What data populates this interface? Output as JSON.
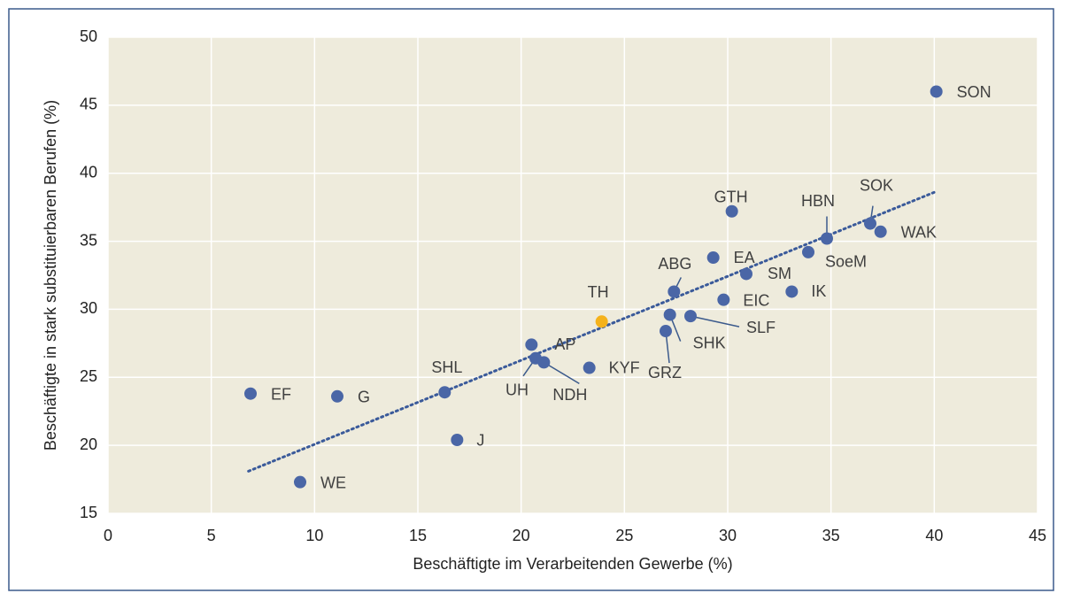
{
  "chart_data": {
    "type": "scatter",
    "x_label": "Beschäftigte im Verarbeitenden Gewerbe (%)",
    "y_label": "Beschäftigte in stark substituierbaren Berufen (%)",
    "xlim": [
      0,
      45
    ],
    "xticks": [
      0,
      5,
      10,
      15,
      20,
      25,
      30,
      35,
      40,
      45
    ],
    "ylim": [
      15,
      50
    ],
    "yticks": [
      15,
      20,
      25,
      30,
      35,
      40,
      45,
      50
    ],
    "grid": true,
    "color": "#4a66a6",
    "highlight_color": "#f5b21b",
    "labels": [
      "SON",
      "EF",
      "G",
      "WE",
      "J",
      "SHL",
      "UH",
      "AP",
      "NDH",
      "KYF",
      "TH",
      "GRZ",
      "SHK",
      "SLF",
      "ABG",
      "EIC",
      "EA",
      "SM",
      "GTH",
      "IK",
      "SoeM",
      "HBN",
      "SOK",
      "WAK"
    ],
    "x": [
      40.1,
      6.9,
      11.1,
      9.3,
      16.9,
      16.3,
      20.7,
      20.5,
      21.1,
      23.3,
      23.9,
      27.0,
      27.2,
      28.2,
      27.4,
      29.8,
      29.3,
      30.9,
      30.2,
      33.1,
      33.9,
      34.8,
      36.9,
      37.4
    ],
    "y": [
      46.0,
      23.8,
      23.6,
      17.3,
      20.4,
      23.9,
      26.4,
      27.4,
      26.1,
      25.7,
      29.1,
      28.4,
      29.6,
      29.5,
      31.3,
      30.7,
      33.8,
      32.6,
      37.2,
      31.3,
      34.2,
      35.2,
      36.3,
      35.7
    ],
    "highlight": "TH",
    "trendline": {
      "x": [
        6.8,
        40.0
      ],
      "y": [
        18.1,
        38.6
      ],
      "color": "#3a5a9a"
    }
  }
}
